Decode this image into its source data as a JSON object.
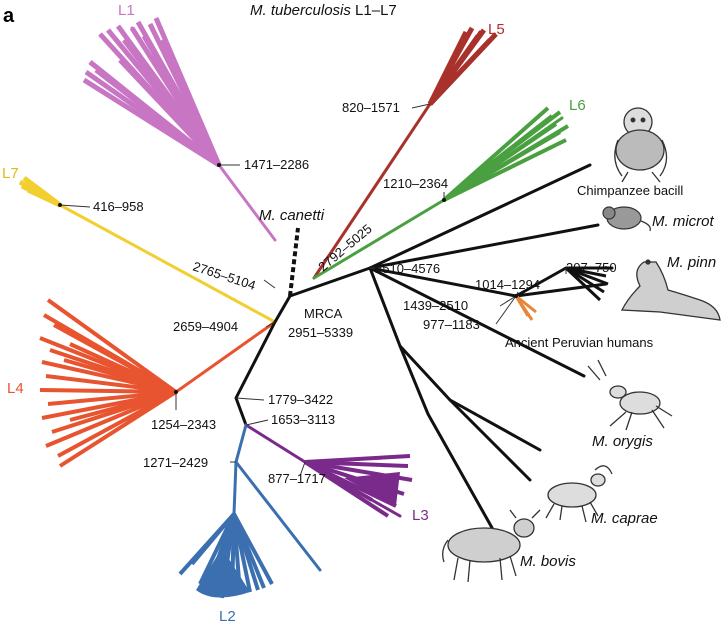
{
  "panel_label": "a",
  "title": {
    "italic": "M. tuberculosis",
    "rest": " L1–L7"
  },
  "lineages": [
    {
      "name": "L1",
      "color": "#c875c4"
    },
    {
      "name": "L2",
      "color": "#3b6fb0"
    },
    {
      "name": "L3",
      "color": "#7a2a8a"
    },
    {
      "name": "L4",
      "color": "#e8542f"
    },
    {
      "name": "L5",
      "color": "#a8322b"
    },
    {
      "name": "L6",
      "color": "#4aa040"
    },
    {
      "name": "L7",
      "color": "#f2cf30"
    }
  ],
  "root_label": [
    "MRCA",
    "2951–5339"
  ],
  "dates": {
    "l1": "1471–2286",
    "l7": "416–958",
    "l7_stem": "2765–5104",
    "l4_stem": "2659–4904",
    "l4": "1254–2343",
    "l23": "1779–3422",
    "l3_stem": "1653–3113",
    "l2_stem": "1271–2429",
    "l3": "877–1717",
    "l5": "820–1571",
    "l6": "1210–2364",
    "l56": "2792–5025",
    "animal": "2510–4576",
    "seal_node": "1439–2510",
    "peru_stem": "1014–1294",
    "pinn": "307–750",
    "peru": "977–1183"
  },
  "species": {
    "canetti": "M. canetti",
    "chimp": "Chimpanzee bacill",
    "microti": "M. microt",
    "pinn": "M. pinn",
    "peru": "Ancient Peruvian humans",
    "orygis": "M. orygis",
    "caprae": "M. caprae",
    "bovis": "M. bovis"
  },
  "colors": {
    "animal": "#111111",
    "peru": "#e8853a",
    "date_line": "#333333"
  },
  "icons": [
    "chimpanzee-icon",
    "vole-icon",
    "sea-lion-icon",
    "oryx-icon",
    "goat-icon",
    "cattle-icon"
  ]
}
